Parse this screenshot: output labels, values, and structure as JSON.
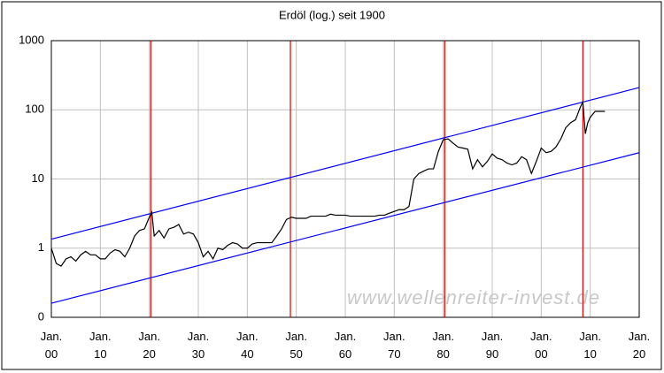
{
  "chart_data": {
    "type": "line",
    "title": "Erdöl (log.) seit 1900",
    "annotation": "www.wellenreiter-invest.de",
    "log_y": true,
    "grid": true,
    "xlim": [
      1900,
      2020
    ],
    "xticks": [
      {
        "value": 1900,
        "label": "Jan. 00"
      },
      {
        "value": 1910,
        "label": "Jan. 10"
      },
      {
        "value": 1920,
        "label": "Jan. 20"
      },
      {
        "value": 1930,
        "label": "Jan. 30"
      },
      {
        "value": 1940,
        "label": "Jan. 40"
      },
      {
        "value": 1950,
        "label": "Jan. 50"
      },
      {
        "value": 1960,
        "label": "Jan. 60"
      },
      {
        "value": 1970,
        "label": "Jan. 70"
      },
      {
        "value": 1980,
        "label": "Jan. 80"
      },
      {
        "value": 1990,
        "label": "Jan. 90"
      },
      {
        "value": 2000,
        "label": "Jan. 00"
      },
      {
        "value": 2010,
        "label": "Jan. 10"
      },
      {
        "value": 2020,
        "label": "Jan. 20"
      }
    ],
    "ylim": [
      0.1,
      1000
    ],
    "yticks": [
      {
        "value": 0.1,
        "label": "0"
      },
      1,
      10,
      100,
      1000
    ],
    "series": [
      {
        "color": "#000000",
        "x": [
          1900,
          1901,
          1902,
          1903,
          1904,
          1905,
          1906,
          1907,
          1908,
          1909,
          1910,
          1911,
          1912,
          1913,
          1914,
          1915,
          1916,
          1917,
          1918,
          1919,
          1920,
          1920.5,
          1921,
          1922,
          1923,
          1924,
          1925,
          1926,
          1927,
          1928,
          1929,
          1930,
          1931,
          1932,
          1933,
          1934,
          1935,
          1936,
          1937,
          1938,
          1939,
          1940,
          1941,
          1942,
          1943,
          1944,
          1945,
          1946,
          1947,
          1948,
          1949,
          1950,
          1951,
          1952,
          1953,
          1954,
          1955,
          1956,
          1957,
          1958,
          1959,
          1960,
          1961,
          1962,
          1963,
          1964,
          1965,
          1966,
          1967,
          1968,
          1969,
          1970,
          1971,
          1972,
          1973,
          1974,
          1975,
          1976,
          1977,
          1978,
          1979,
          1980,
          1981,
          1982,
          1983,
          1984,
          1985,
          1986,
          1987,
          1988,
          1989,
          1990,
          1991,
          1992,
          1993,
          1994,
          1995,
          1996,
          1997,
          1998,
          1999,
          2000,
          2001,
          2002,
          2003,
          2004,
          2005,
          2006,
          2007,
          2008,
          2008.5,
          2009,
          2009.5,
          2010,
          2011,
          2012,
          2013
        ],
        "values": [
          1.0,
          0.6,
          0.55,
          0.7,
          0.75,
          0.65,
          0.8,
          0.9,
          0.8,
          0.8,
          0.7,
          0.7,
          0.85,
          0.95,
          0.9,
          0.75,
          1.0,
          1.5,
          1.8,
          1.9,
          2.8,
          3.3,
          1.5,
          1.8,
          1.4,
          1.9,
          2.0,
          2.2,
          1.6,
          1.7,
          1.6,
          1.2,
          0.75,
          0.9,
          0.7,
          1.0,
          0.95,
          1.1,
          1.2,
          1.15,
          1.0,
          1.0,
          1.15,
          1.2,
          1.2,
          1.2,
          1.2,
          1.5,
          1.9,
          2.6,
          2.8,
          2.7,
          2.7,
          2.7,
          2.9,
          2.9,
          2.9,
          2.9,
          3.1,
          3.0,
          3.0,
          3.0,
          2.9,
          2.9,
          2.9,
          2.9,
          2.9,
          2.9,
          3.0,
          3.0,
          3.2,
          3.4,
          3.6,
          3.6,
          4.0,
          10,
          12,
          13,
          14,
          14,
          25,
          37,
          38,
          33,
          29,
          28,
          27,
          14,
          19,
          15,
          18,
          23,
          20,
          19,
          17,
          16,
          17,
          21,
          19,
          12,
          18,
          28,
          24,
          25,
          29,
          38,
          55,
          65,
          72,
          110,
          130,
          45,
          65,
          78,
          95,
          95,
          95
        ]
      }
    ],
    "channel": {
      "color": "#0000ff",
      "lines": [
        {
          "x": [
            1900,
            2020
          ],
          "values": [
            1.35,
            210
          ]
        },
        {
          "x": [
            1900,
            2020
          ],
          "values": [
            0.16,
            24
          ]
        }
      ]
    },
    "markers": {
      "color": "#dd0000",
      "x": [
        1920.3,
        1948.8,
        1980.3,
        2008.5
      ]
    }
  }
}
